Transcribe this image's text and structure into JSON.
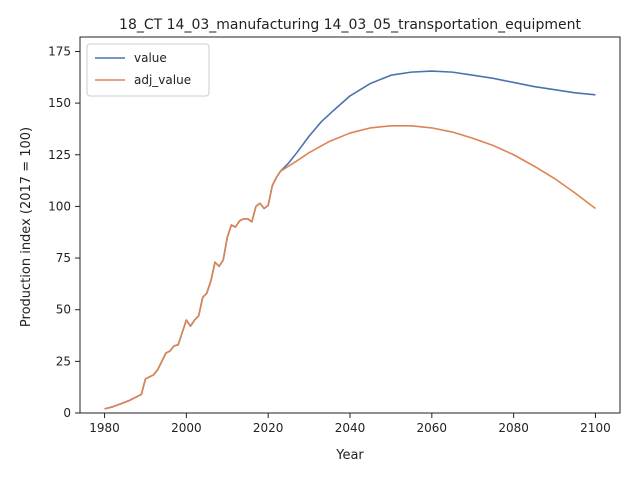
{
  "chart_data": {
    "type": "line",
    "title": "18_CT 14_03_manufacturing 14_03_05_transportation_equipment",
    "xlabel": "Year",
    "ylabel": "Production index (2017 = 100)",
    "xlim": [
      1974,
      2106
    ],
    "ylim": [
      0,
      182
    ],
    "xticks": [
      1980,
      2000,
      2020,
      2040,
      2060,
      2080,
      2100
    ],
    "yticks": [
      0,
      25,
      50,
      75,
      100,
      125,
      150,
      175
    ],
    "legend_position": "upper-left",
    "grid": false,
    "series": [
      {
        "name": "value",
        "color": "#4c72b0",
        "x": [
          1980,
          1982,
          1984,
          1986,
          1988,
          1989,
          1990,
          1992,
          1993,
          1994,
          1995,
          1996,
          1997,
          1998,
          1999,
          2000,
          2001,
          2002,
          2003,
          2004,
          2005,
          2006,
          2007,
          2008,
          2009,
          2010,
          2011,
          2012,
          2013,
          2014,
          2015,
          2016,
          2017,
          2018,
          2019,
          2020,
          2021,
          2022,
          2023,
          2025,
          2027,
          2030,
          2033,
          2036,
          2040,
          2045,
          2050,
          2055,
          2060,
          2065,
          2070,
          2075,
          2080,
          2085,
          2090,
          2095,
          2100
        ],
        "values": [
          2,
          3,
          4.5,
          6,
          8,
          9,
          16.5,
          18.5,
          21,
          25,
          29,
          30,
          32.5,
          33,
          39,
          45,
          42,
          45,
          47,
          56,
          58,
          64,
          73,
          71,
          74,
          85,
          91,
          90,
          93,
          94,
          94,
          92.5,
          100,
          101.5,
          99,
          100.5,
          110,
          114,
          117,
          121,
          126,
          134,
          141,
          146.5,
          153.5,
          159.5,
          163.5,
          165,
          165.5,
          165,
          163.5,
          162,
          160,
          158,
          156.5,
          155,
          154
        ]
      },
      {
        "name": "adj_value",
        "color": "#dd8452",
        "x": [
          1980,
          1982,
          1984,
          1986,
          1988,
          1989,
          1990,
          1992,
          1993,
          1994,
          1995,
          1996,
          1997,
          1998,
          1999,
          2000,
          2001,
          2002,
          2003,
          2004,
          2005,
          2006,
          2007,
          2008,
          2009,
          2010,
          2011,
          2012,
          2013,
          2014,
          2015,
          2016,
          2017,
          2018,
          2019,
          2020,
          2021,
          2022,
          2023,
          2025,
          2027,
          2030,
          2035,
          2040,
          2045,
          2050,
          2055,
          2060,
          2065,
          2070,
          2075,
          2080,
          2085,
          2090,
          2095,
          2100
        ],
        "values": [
          2,
          3,
          4.5,
          6,
          8,
          9,
          16.5,
          18.5,
          21,
          25,
          29,
          30,
          32.5,
          33,
          39,
          45,
          42,
          45,
          47,
          56,
          58,
          64,
          73,
          71,
          74,
          85,
          91,
          90,
          93,
          94,
          94,
          92.5,
          100,
          101.5,
          99,
          100.5,
          110,
          114,
          117,
          119.5,
          122,
          126,
          131.5,
          135.5,
          138,
          139,
          139,
          138,
          136,
          133,
          129.5,
          125,
          119.5,
          113.5,
          106.5,
          99
        ]
      }
    ]
  }
}
